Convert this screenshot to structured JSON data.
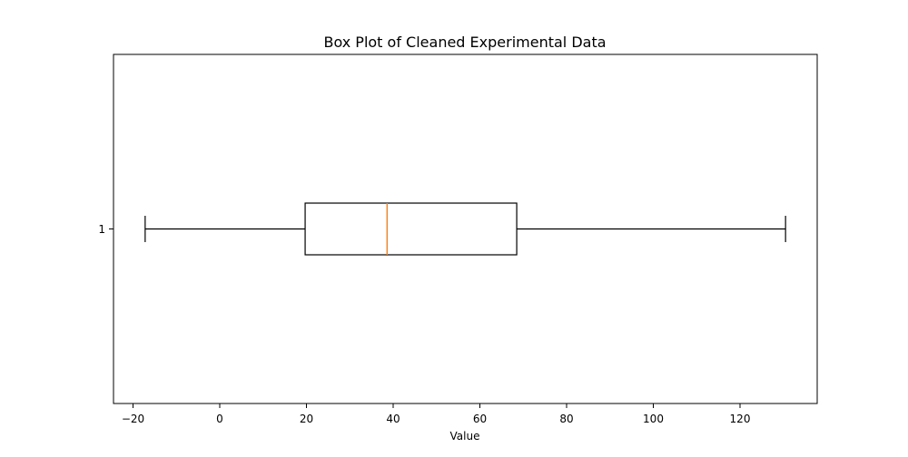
{
  "chart_data": {
    "type": "box",
    "title": "Box Plot of Cleaned Experimental Data",
    "xlabel": "Value",
    "ylabel": "",
    "orientation": "horizontal",
    "xlim": [
      -24.5,
      137.8
    ],
    "x_ticks": [
      -20,
      0,
      20,
      40,
      60,
      80,
      100,
      120
    ],
    "x_tick_labels": [
      "−20",
      "0",
      "20",
      "40",
      "60",
      "80",
      "100",
      "120"
    ],
    "categories": [
      "1"
    ],
    "boxes": [
      {
        "label": "1",
        "whisker_low": -17.2,
        "q1": 19.7,
        "median": 38.6,
        "q3": 68.5,
        "whisker_high": 130.5
      }
    ],
    "grid": false,
    "legend": "none",
    "colors": {
      "box": "#000000",
      "median": "#ff7f0e",
      "whisker": "#000000",
      "axis": "#000000"
    }
  }
}
